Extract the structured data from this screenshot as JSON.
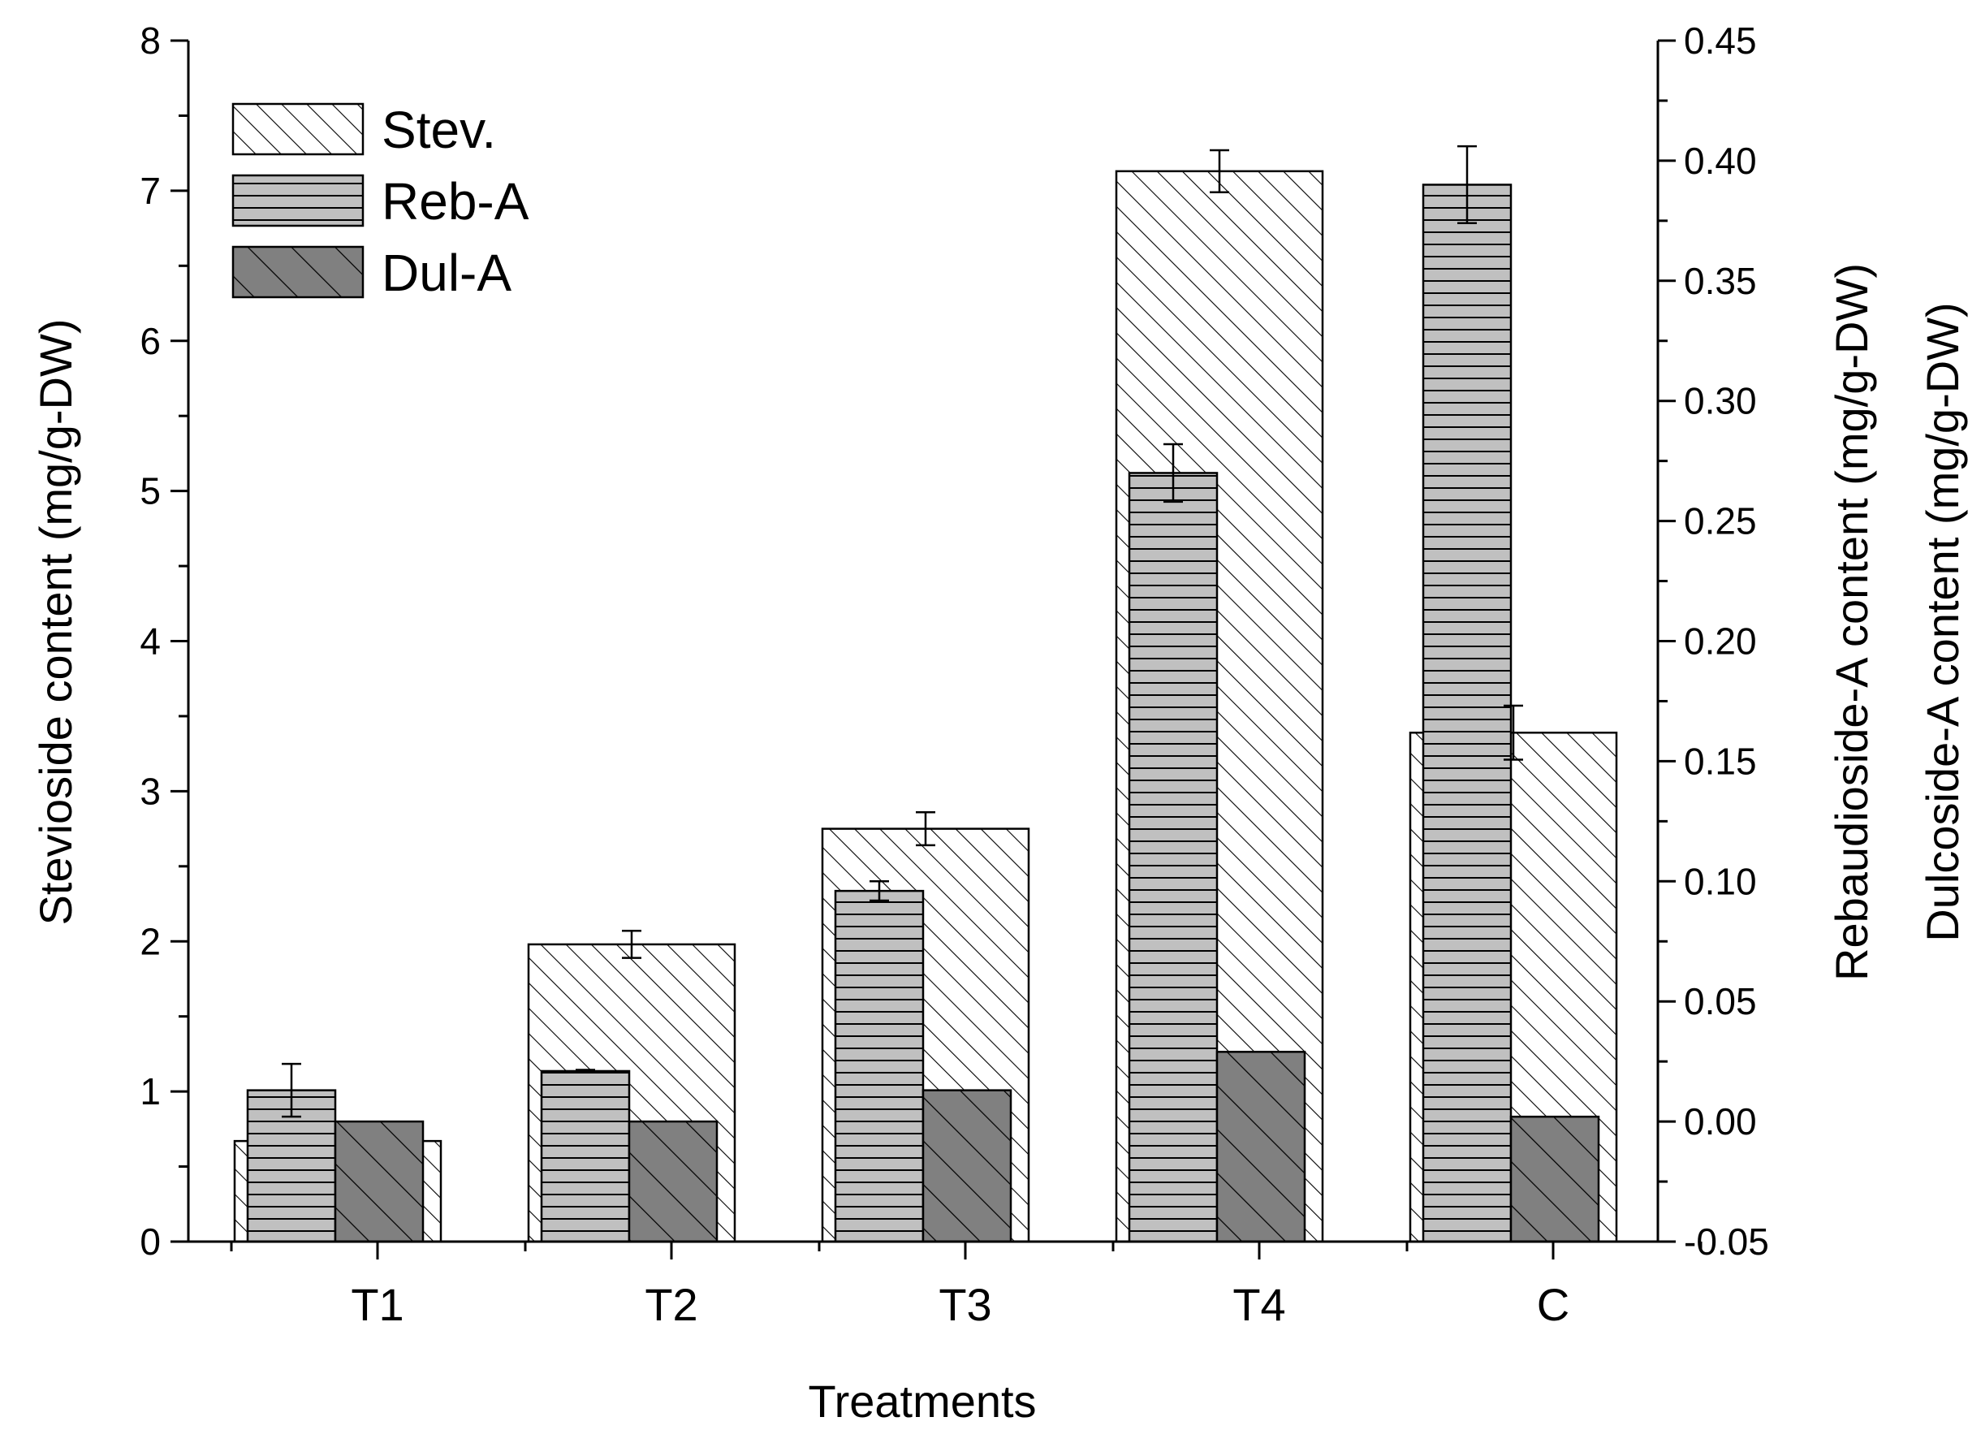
{
  "chart_data": {
    "type": "bar",
    "title": "",
    "xlabel": "Treatments",
    "ylabel_left": "Stevioside content (mg/g-DW)",
    "ylabel_right_inner": "Rebaudioside-A content (mg/g-DW)",
    "ylabel_right_outer": "Dulcoside-A content (mg/g-DW)",
    "categories": [
      "T1",
      "T2",
      "T3",
      "T4",
      "C"
    ],
    "left_axis": {
      "ylim": [
        0,
        8
      ],
      "ticks": [
        "0",
        "1",
        "2",
        "3",
        "4",
        "5",
        "6",
        "7",
        "8"
      ]
    },
    "right_axis": {
      "ylim": [
        -0.05,
        0.45
      ],
      "ticks": [
        "-0.05",
        "0.00",
        "0.05",
        "0.10",
        "0.15",
        "0.20",
        "0.25",
        "0.30",
        "0.35",
        "0.40",
        "0.45"
      ]
    },
    "legend_position": "top-left",
    "series": [
      {
        "name": "Stev.",
        "axis": "left",
        "pattern": "diagonal-fine",
        "fill": "#ffffff",
        "values": [
          0.67,
          1.98,
          2.75,
          7.13,
          3.39
        ],
        "errors": [
          null,
          0.09,
          0.11,
          0.14,
          0.18
        ]
      },
      {
        "name": "Reb-A",
        "axis": "right",
        "pattern": "horizontal",
        "fill": "#c0c0c0",
        "values": [
          0.013,
          0.021,
          0.096,
          0.27,
          0.39
        ],
        "errors": [
          0.011,
          0.0005,
          0.004,
          0.012,
          0.016
        ]
      },
      {
        "name": "Dul-A",
        "axis": "right",
        "pattern": "diagonal-wide",
        "fill": "#808080",
        "values": [
          0.0,
          0.0,
          0.013,
          0.029,
          0.002
        ],
        "errors": [
          null,
          null,
          null,
          null,
          null
        ]
      }
    ]
  }
}
